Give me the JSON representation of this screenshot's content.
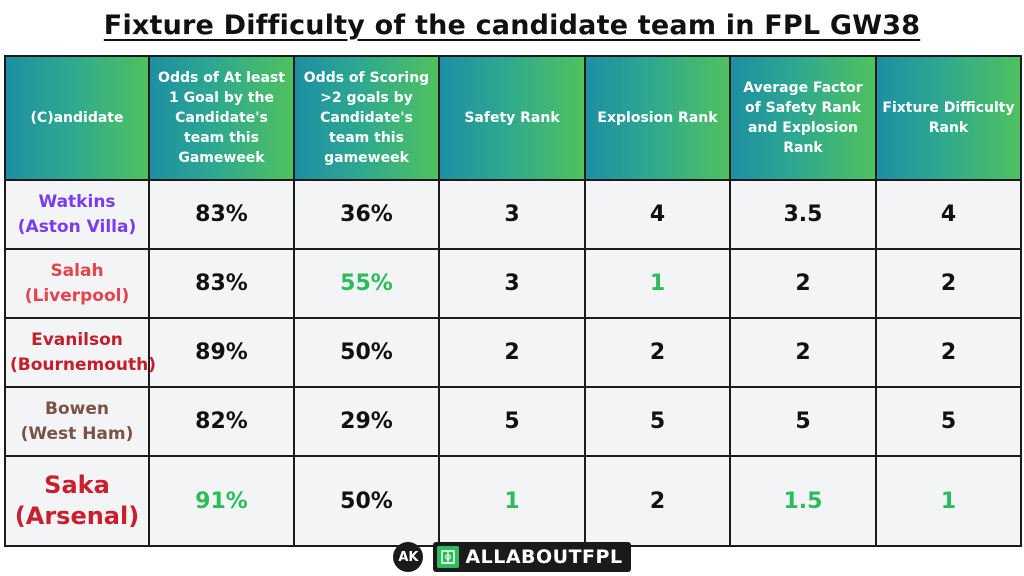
{
  "title": "Fixture Difficulty of the candidate team in FPL GW38",
  "colors": {
    "header_gradient_start": "#1d8fa3",
    "header_gradient_end": "#4fc15f",
    "highlight_green": "#2dbb5c",
    "watkins": "#7a3cf0",
    "salah": "#e8424a",
    "evanilson": "#c41e2a",
    "bowen": "#7b5346",
    "saka": "#c8202e"
  },
  "chart_data": {
    "type": "table",
    "columns": [
      "(C)andidate",
      "Odds of At least 1 Goal by the Candidate's team this Gameweek",
      "Odds of Scoring >2 goals by Candidate's team this gameweek",
      "Safety Rank",
      "Explosion Rank",
      "Average Factor of Safety Rank and Explosion Rank",
      "Fixture Difficulty Rank"
    ],
    "rows": [
      {
        "name": "Watkins",
        "team": "(Aston Villa)",
        "color_key": "watkins",
        "big": false,
        "cells": [
          "83%",
          "36%",
          "3",
          "4",
          "3.5",
          "4"
        ],
        "highlight": [
          false,
          false,
          false,
          false,
          false,
          false
        ]
      },
      {
        "name": "Salah",
        "team": "(Liverpool)",
        "color_key": "salah",
        "big": false,
        "cells": [
          "83%",
          "55%",
          "3",
          "1",
          "2",
          "2"
        ],
        "highlight": [
          false,
          true,
          false,
          true,
          false,
          false
        ]
      },
      {
        "name": "Evanilson",
        "team": "(Bournemouth)",
        "color_key": "evanilson",
        "big": false,
        "cells": [
          "89%",
          "50%",
          "2",
          "2",
          "2",
          "2"
        ],
        "highlight": [
          false,
          false,
          false,
          false,
          false,
          false
        ]
      },
      {
        "name": "Bowen",
        "team": "(West Ham)",
        "color_key": "bowen",
        "big": false,
        "cells": [
          "82%",
          "29%",
          "5",
          "5",
          "5",
          "5"
        ],
        "highlight": [
          false,
          false,
          false,
          false,
          false,
          false
        ]
      },
      {
        "name": "Saka",
        "team": "(Arsenal)",
        "color_key": "saka",
        "big": true,
        "cells": [
          "91%",
          "50%",
          "1",
          "2",
          "1.5",
          "1"
        ],
        "highlight": [
          true,
          false,
          true,
          false,
          true,
          true
        ]
      }
    ]
  },
  "footer": {
    "ak_logo_text": "AK",
    "brand_text": "ALLABOUTFPL",
    "icons": [
      "ak-logo-icon",
      "allaboutfpl-logo-icon"
    ]
  }
}
